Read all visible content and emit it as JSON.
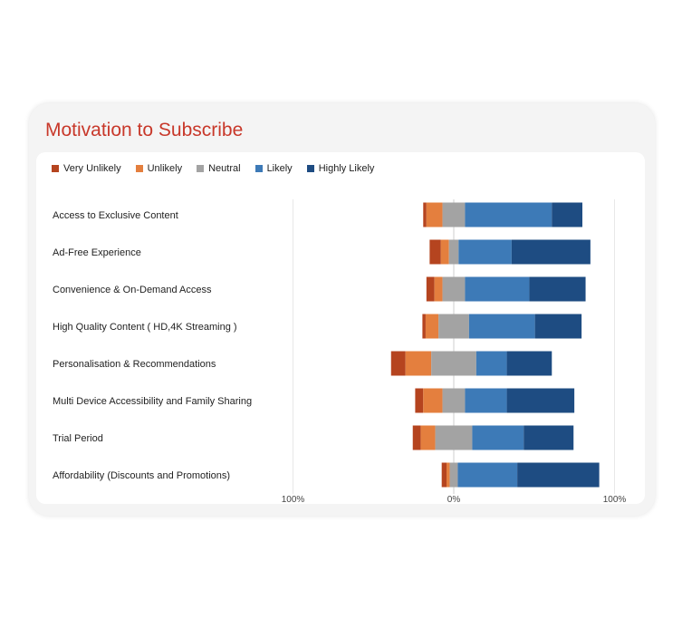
{
  "title": "Motivation to Subscribe",
  "chart_data": {
    "type": "bar",
    "orientation": "horizontal",
    "stacking": "diverging",
    "categories": [
      "Access to Exclusive Content",
      "Ad-Free Experience",
      "Convenience & On-Demand Access",
      "High Quality Content ( HD,4K Streaming )",
      "Personalisation & Recommendations",
      "Multi Device Accessibility and Family Sharing",
      "Trial Period",
      "Affordability (Discounts and Promotions)"
    ],
    "series": [
      {
        "name": "Very Unlikely",
        "color": "#b5441f",
        "values": [
          2,
          7,
          5,
          2,
          9,
          5,
          5,
          3
        ]
      },
      {
        "name": "Unlikely",
        "color": "#e47f3e",
        "values": [
          10,
          5,
          5,
          8,
          16,
          12,
          9,
          2
        ]
      },
      {
        "name": "Neutral",
        "color": "#a3a3a3",
        "values": [
          14,
          6,
          14,
          19,
          28,
          14,
          23,
          5
        ]
      },
      {
        "name": "Likely",
        "color": "#3d7ab7",
        "values": [
          54,
          33,
          40,
          41,
          19,
          26,
          32,
          37
        ]
      },
      {
        "name": "Highly Likely",
        "color": "#1e4c82",
        "values": [
          19,
          49,
          35,
          29,
          28,
          42,
          31,
          51
        ]
      }
    ],
    "tick_labels": [
      "100%",
      "0%",
      "100%"
    ],
    "xlim": [
      -100,
      100
    ],
    "legend_position": "top-left",
    "grid": true
  }
}
